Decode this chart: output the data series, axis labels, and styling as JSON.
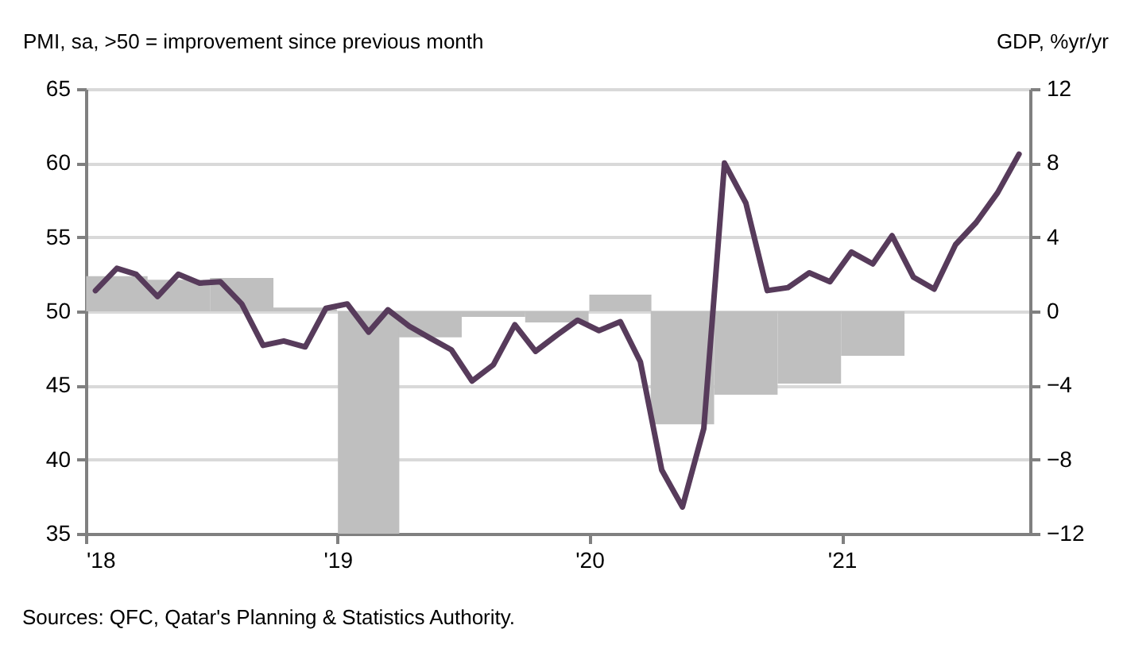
{
  "chart_data": {
    "type": "line",
    "ylabel": "PMI, sa, >50 = improvement  since previous month",
    "y2label": "GDP, %yr/yr",
    "annotations": [
      "Sources: QFC, Qatar's Planning & Statistics Authority."
    ],
    "xlim": [
      "2018-01-01",
      "2021-10-01"
    ],
    "xticks": [
      {
        "value": "2018-01-01",
        "label": "'18"
      },
      {
        "value": "2019-01-01",
        "label": "'19"
      },
      {
        "value": "2020-01-01",
        "label": "'20"
      },
      {
        "value": "2021-01-01",
        "label": "'21"
      }
    ],
    "ylim": [
      35,
      65
    ],
    "yticks": [
      35,
      40,
      45,
      50,
      55,
      60,
      65
    ],
    "y2lim": [
      -12,
      12
    ],
    "y2ticks": [
      -12,
      -8,
      -4,
      0,
      4,
      8,
      12
    ],
    "grid": "y",
    "series": [
      {
        "type": "bar",
        "axis": "y2",
        "color": "#bfbfbf",
        "x": [
          "2018-02-15",
          "2018-05-15",
          "2018-08-15",
          "2018-11-15",
          "2019-02-15",
          "2019-05-15",
          "2019-08-15",
          "2019-11-15",
          "2020-02-15",
          "2020-05-15",
          "2020-08-15",
          "2020-11-15",
          "2021-02-15"
        ],
        "values": [
          1.9,
          1.7,
          1.8,
          0.2,
          -12,
          -1.4,
          -0.3,
          -0.6,
          0.9,
          -6.1,
          -4.5,
          -3.9,
          -2.4
        ]
      },
      {
        "color": "#573b5b",
        "x": [
          "2018-01-15",
          "2018-02-15",
          "2018-03-15",
          "2018-04-15",
          "2018-05-15",
          "2018-06-15",
          "2018-07-15",
          "2018-08-15",
          "2018-09-15",
          "2018-10-15",
          "2018-11-15",
          "2018-12-15",
          "2019-01-15",
          "2019-02-15",
          "2019-03-15",
          "2019-04-15",
          "2019-05-15",
          "2019-06-15",
          "2019-07-15",
          "2019-08-15",
          "2019-09-15",
          "2019-10-15",
          "2019-11-15",
          "2019-12-15",
          "2020-01-15",
          "2020-02-15",
          "2020-03-15",
          "2020-04-15",
          "2020-05-15",
          "2020-06-15",
          "2020-07-15",
          "2020-08-15",
          "2020-09-15",
          "2020-10-15",
          "2020-11-15",
          "2020-12-15",
          "2021-01-15",
          "2021-02-15",
          "2021-03-15",
          "2021-04-15",
          "2021-05-15",
          "2021-06-15",
          "2021-07-15",
          "2021-08-15",
          "2021-09-15"
        ],
        "values": [
          51.4,
          52.9,
          52.5,
          51.0,
          52.5,
          51.9,
          52.0,
          50.5,
          47.7,
          48.0,
          47.6,
          50.2,
          50.5,
          48.6,
          50.1,
          49.0,
          48.2,
          47.4,
          45.3,
          46.4,
          49.1,
          47.3,
          48.4,
          49.4,
          48.7,
          49.3,
          46.6,
          39.3,
          36.8,
          42.1,
          60.0,
          57.3,
          51.4,
          51.6,
          52.6,
          52.0,
          54.0,
          53.2,
          55.1,
          52.3,
          51.5,
          54.5,
          56.0,
          58.0,
          60.6
        ]
      }
    ]
  }
}
